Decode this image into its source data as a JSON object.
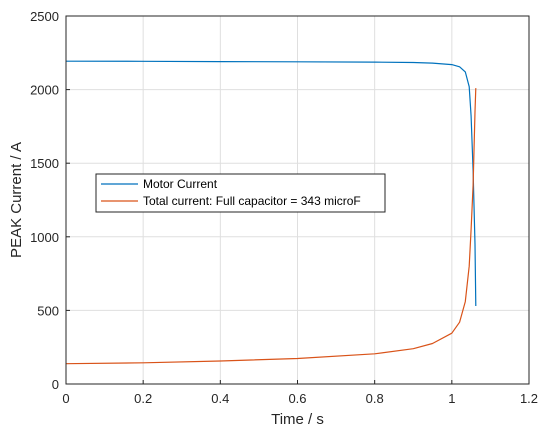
{
  "chart_data": {
    "type": "line",
    "xlabel": "Time / s",
    "ylabel": "PEAK Current / A",
    "xlim": [
      0,
      1.2
    ],
    "ylim": [
      0,
      2500
    ],
    "xticks": [
      0,
      0.2,
      0.4,
      0.6,
      0.8,
      1,
      1.2
    ],
    "xtick_labels": [
      "0",
      "0.2",
      "0.4",
      "0.6",
      "0.8",
      "1",
      "1.2"
    ],
    "yticks": [
      0,
      500,
      1000,
      1500,
      2000,
      2500
    ],
    "ytick_labels": [
      "0",
      "500",
      "1000",
      "1500",
      "2000",
      "2500"
    ],
    "grid": true,
    "legend_position": "center-left",
    "series": [
      {
        "name": "Motor Current",
        "color": "#0072BD",
        "x": [
          0,
          0.2,
          0.4,
          0.6,
          0.8,
          0.9,
          0.95,
          1.0,
          1.02,
          1.035,
          1.045,
          1.05,
          1.055,
          1.06,
          1.062
        ],
        "y": [
          2193,
          2192,
          2190,
          2189,
          2187,
          2184,
          2180,
          2170,
          2155,
          2120,
          2020,
          1820,
          1450,
          950,
          530
        ]
      },
      {
        "name": "Total current: Full capacitor = 343 microF",
        "color": "#D95319",
        "x": [
          0,
          0.2,
          0.4,
          0.6,
          0.8,
          0.9,
          0.95,
          1.0,
          1.02,
          1.035,
          1.045,
          1.05,
          1.055,
          1.06,
          1.062
        ],
        "y": [
          138,
          144,
          156,
          173,
          205,
          240,
          275,
          345,
          420,
          560,
          800,
          1050,
          1350,
          1850,
          2010
        ]
      }
    ]
  }
}
